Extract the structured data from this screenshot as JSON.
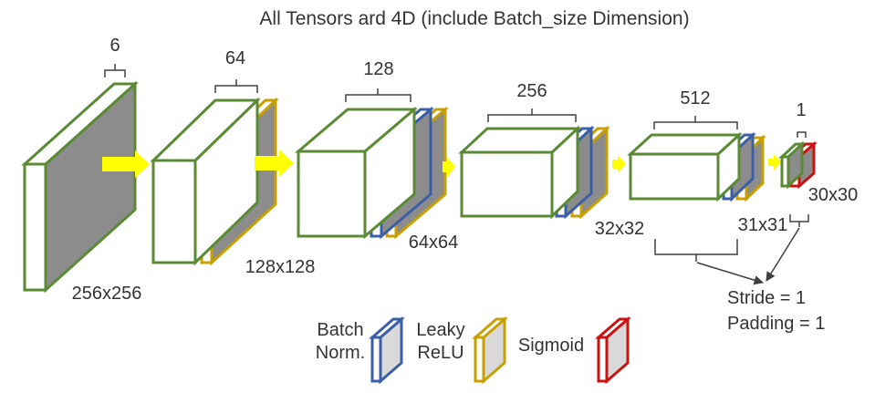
{
  "title": "All Tensors ard 4D (include Batch_size Dimension)",
  "colors": {
    "conv": "#5b8a35",
    "batch_norm": "#3a5fa8",
    "leaky_relu": "#c8a000",
    "sigmoid": "#cc1111",
    "arrow": "#ffff00",
    "face": "#8c8c8c",
    "legend_face": "#d9d9d9",
    "bracket": "#404040"
  },
  "blocks": [
    {
      "depth_label": "6",
      "size_label": "256x256"
    },
    {
      "depth_label": "64",
      "size_label": "128x128"
    },
    {
      "depth_label": "128",
      "size_label": "64x64"
    },
    {
      "depth_label": "256",
      "size_label": "32x32"
    },
    {
      "depth_label": "512",
      "size_label": "31x31"
    },
    {
      "depth_label": "1",
      "size_label": "30x30"
    }
  ],
  "conv_params": {
    "stride": "Stride = 1",
    "padding": "Padding = 1"
  },
  "legend": {
    "batch_norm_line1": "Batch",
    "batch_norm_line2": "Norm.",
    "leaky_relu_line1": "Leaky",
    "leaky_relu_line2": "ReLU",
    "sigmoid": "Sigmoid"
  }
}
